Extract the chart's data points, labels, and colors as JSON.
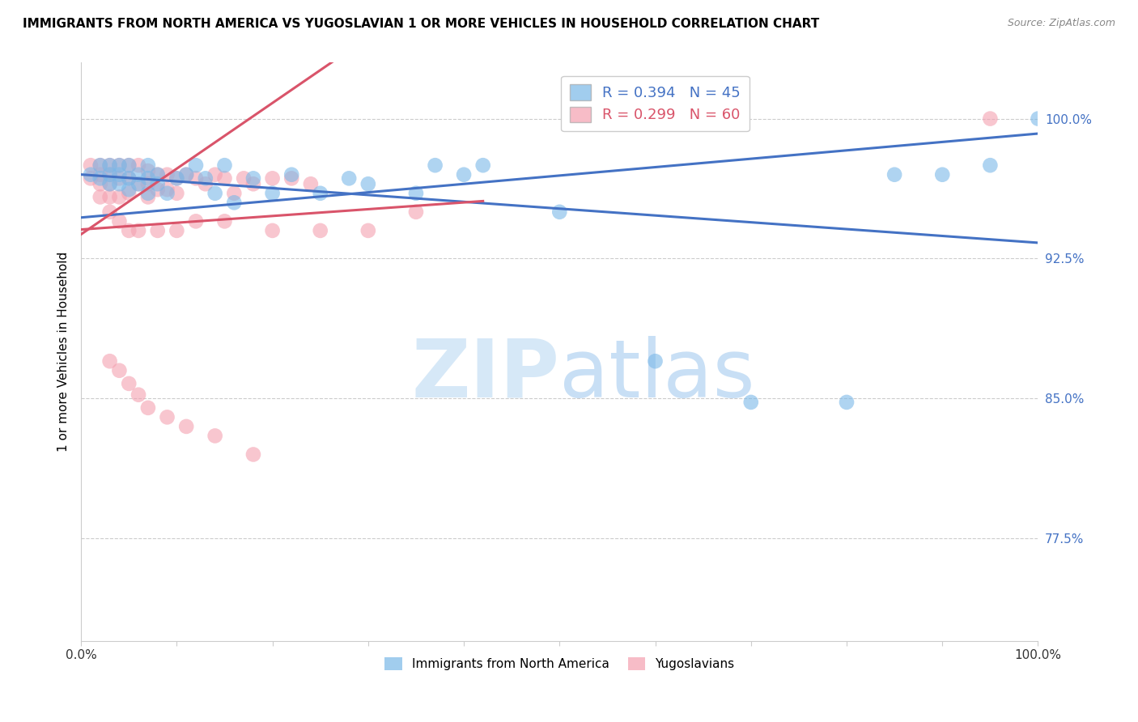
{
  "title": "IMMIGRANTS FROM NORTH AMERICA VS YUGOSLAVIAN 1 OR MORE VEHICLES IN HOUSEHOLD CORRELATION CHART",
  "source": "Source: ZipAtlas.com",
  "ylabel": "1 or more Vehicles in Household",
  "xlim": [
    0.0,
    1.0
  ],
  "ylim": [
    0.72,
    1.03
  ],
  "yticks": [
    0.775,
    0.85,
    0.925,
    1.0
  ],
  "ytick_labels": [
    "77.5%",
    "85.0%",
    "92.5%",
    "100.0%"
  ],
  "xticks": [
    0.0,
    0.1,
    0.2,
    0.3,
    0.4,
    0.5,
    0.6,
    0.7,
    0.8,
    0.9,
    1.0
  ],
  "xtick_labels": [
    "0.0%",
    "",
    "",
    "",
    "",
    "",
    "",
    "",
    "",
    "",
    "100.0%"
  ],
  "blue_color": "#7ab8e8",
  "pink_color": "#f4a0b0",
  "trendline_blue": "#4472c4",
  "trendline_pink": "#d9546a",
  "R_blue": 0.394,
  "N_blue": 45,
  "R_pink": 0.299,
  "N_pink": 60,
  "blue_scatter_x": [
    0.01,
    0.02,
    0.02,
    0.03,
    0.03,
    0.03,
    0.04,
    0.04,
    0.04,
    0.05,
    0.05,
    0.05,
    0.06,
    0.06,
    0.07,
    0.07,
    0.07,
    0.08,
    0.08,
    0.09,
    0.1,
    0.11,
    0.12,
    0.13,
    0.14,
    0.15,
    0.16,
    0.18,
    0.2,
    0.22,
    0.25,
    0.28,
    0.3,
    0.35,
    0.4,
    0.5,
    0.6,
    0.7,
    0.8,
    0.85,
    0.9,
    0.95,
    1.0,
    0.37,
    0.42
  ],
  "blue_scatter_y": [
    0.97,
    0.975,
    0.968,
    0.975,
    0.97,
    0.965,
    0.975,
    0.97,
    0.965,
    0.975,
    0.968,
    0.962,
    0.97,
    0.965,
    0.975,
    0.968,
    0.96,
    0.97,
    0.965,
    0.96,
    0.968,
    0.97,
    0.975,
    0.968,
    0.96,
    0.975,
    0.955,
    0.968,
    0.96,
    0.97,
    0.96,
    0.968,
    0.965,
    0.96,
    0.97,
    0.95,
    0.87,
    0.848,
    0.848,
    0.97,
    0.97,
    0.975,
    1.0,
    0.975,
    0.975
  ],
  "pink_scatter_x": [
    0.01,
    0.01,
    0.02,
    0.02,
    0.02,
    0.02,
    0.03,
    0.03,
    0.03,
    0.03,
    0.04,
    0.04,
    0.04,
    0.05,
    0.05,
    0.05,
    0.06,
    0.06,
    0.07,
    0.07,
    0.07,
    0.08,
    0.08,
    0.09,
    0.09,
    0.1,
    0.1,
    0.11,
    0.12,
    0.13,
    0.14,
    0.15,
    0.16,
    0.17,
    0.18,
    0.2,
    0.22,
    0.24,
    0.03,
    0.04,
    0.05,
    0.06,
    0.08,
    0.1,
    0.12,
    0.15,
    0.2,
    0.25,
    0.3,
    0.35,
    0.03,
    0.04,
    0.05,
    0.06,
    0.07,
    0.09,
    0.11,
    0.14,
    0.18,
    0.95
  ],
  "pink_scatter_y": [
    0.975,
    0.968,
    0.975,
    0.97,
    0.965,
    0.958,
    0.975,
    0.97,
    0.965,
    0.958,
    0.975,
    0.968,
    0.958,
    0.975,
    0.968,
    0.96,
    0.975,
    0.965,
    0.972,
    0.965,
    0.958,
    0.97,
    0.962,
    0.97,
    0.962,
    0.968,
    0.96,
    0.97,
    0.968,
    0.965,
    0.97,
    0.968,
    0.96,
    0.968,
    0.965,
    0.968,
    0.968,
    0.965,
    0.95,
    0.945,
    0.94,
    0.94,
    0.94,
    0.94,
    0.945,
    0.945,
    0.94,
    0.94,
    0.94,
    0.95,
    0.87,
    0.865,
    0.858,
    0.852,
    0.845,
    0.84,
    0.835,
    0.83,
    0.82,
    1.0
  ],
  "watermark_zip": "ZIP",
  "watermark_atlas": "atlas",
  "watermark_color": "#d6e8f7",
  "legend_label_blue": "Immigrants from North America",
  "legend_label_pink": "Yugoslavians"
}
